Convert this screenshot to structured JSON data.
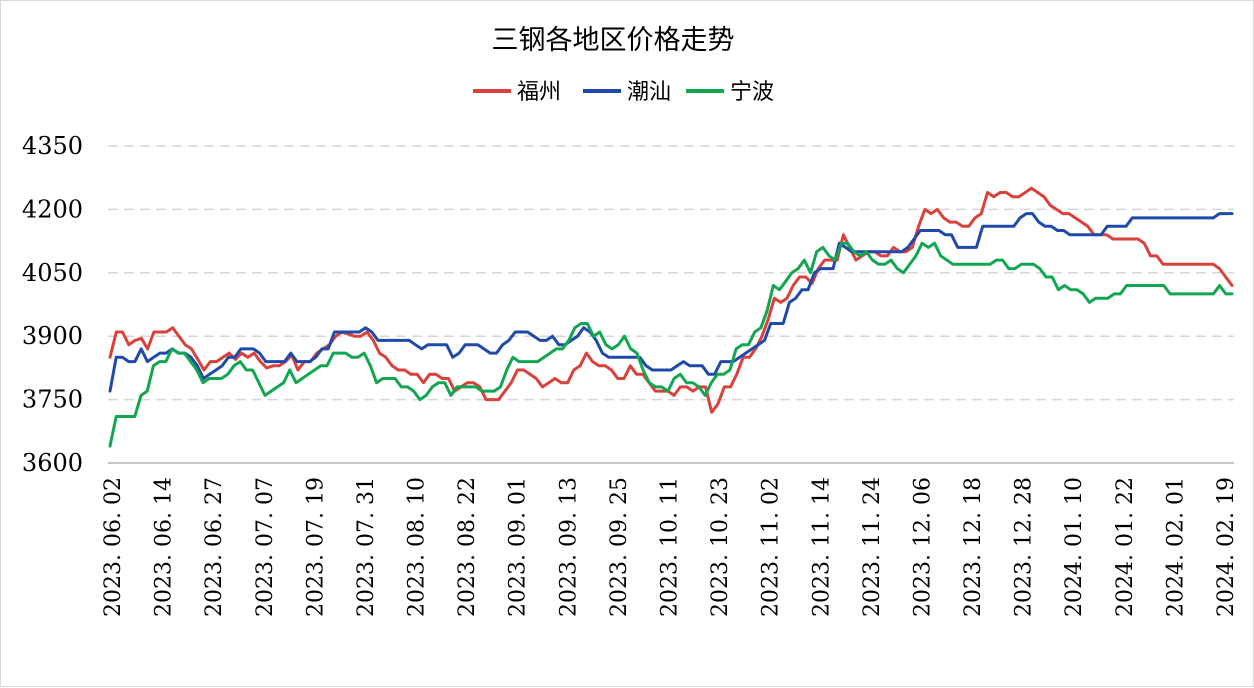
{
  "chart_data": {
    "type": "line",
    "title": "三钢各地区价格走势",
    "xlabel": "",
    "ylabel": "",
    "ylim": [
      3600,
      4350
    ],
    "yticks": [
      3600,
      3750,
      3900,
      4050,
      4200,
      4350
    ],
    "grid": true,
    "legend": "top-center",
    "xtick_labels": [
      "2023. 06. 02",
      "2023. 06. 14",
      "2023. 06. 27",
      "2023. 07. 07",
      "2023. 07. 19",
      "2023. 07. 31",
      "2023. 08. 10",
      "2023. 08. 22",
      "2023. 09. 01",
      "2023. 09. 13",
      "2023. 09. 25",
      "2023. 10. 11",
      "2023. 10. 23",
      "2023. 11. 02",
      "2023. 11. 14",
      "2023. 11. 24",
      "2023. 12. 06",
      "2023. 12. 18",
      "2023. 12. 28",
      "2024. 01. 10",
      "2024. 01. 22",
      "2024. 02. 01",
      "2024. 02. 19"
    ],
    "series": [
      {
        "name": "福州",
        "color": "#d9413a",
        "values": [
          3850,
          3910,
          3910,
          3880,
          3890,
          3895,
          3870,
          3910,
          3910,
          3910,
          3920,
          3900,
          3880,
          3870,
          3845,
          3820,
          3840,
          3840,
          3850,
          3860,
          3845,
          3860,
          3850,
          3860,
          3840,
          3825,
          3830,
          3830,
          3840,
          3855,
          3820,
          3840,
          3840,
          3860,
          3870,
          3880,
          3900,
          3910,
          3905,
          3900,
          3900,
          3910,
          3890,
          3860,
          3850,
          3830,
          3820,
          3820,
          3810,
          3810,
          3790,
          3810,
          3810,
          3800,
          3800,
          3770,
          3780,
          3790,
          3790,
          3780,
          3750,
          3750,
          3750,
          3770,
          3790,
          3820,
          3820,
          3810,
          3800,
          3780,
          3790,
          3800,
          3790,
          3790,
          3820,
          3830,
          3860,
          3840,
          3830,
          3830,
          3820,
          3800,
          3800,
          3830,
          3810,
          3810,
          3790,
          3770,
          3770,
          3770,
          3760,
          3780,
          3780,
          3770,
          3780,
          3780,
          3720,
          3740,
          3780,
          3780,
          3810,
          3850,
          3850,
          3870,
          3900,
          3940,
          3990,
          3980,
          3990,
          4020,
          4040,
          4040,
          4025,
          4060,
          4080,
          4080,
          4080,
          4140,
          4110,
          4080,
          4090,
          4100,
          4100,
          4090,
          4090,
          4110,
          4100,
          4100,
          4110,
          4160,
          4200,
          4190,
          4200,
          4180,
          4170,
          4170,
          4160,
          4160,
          4180,
          4190,
          4240,
          4230,
          4240,
          4240,
          4230,
          4230,
          4240,
          4250,
          4240,
          4230,
          4210,
          4200,
          4190,
          4190,
          4180,
          4170,
          4160,
          4140,
          4140,
          4140,
          4130,
          4130,
          4130,
          4130,
          4130,
          4120,
          4090,
          4090,
          4070,
          4070,
          4070,
          4070,
          4070,
          4070,
          4070,
          4070,
          4070,
          4060,
          4040,
          4020
        ]
      },
      {
        "name": "潮汕",
        "color": "#1f4aaa",
        "values": [
          3770,
          3850,
          3850,
          3840,
          3840,
          3870,
          3840,
          3850,
          3860,
          3860,
          3870,
          3860,
          3860,
          3850,
          3830,
          3800,
          3810,
          3820,
          3830,
          3850,
          3850,
          3870,
          3870,
          3870,
          3860,
          3840,
          3840,
          3840,
          3840,
          3860,
          3840,
          3840,
          3840,
          3850,
          3870,
          3870,
          3910,
          3910,
          3910,
          3910,
          3910,
          3920,
          3910,
          3890,
          3890,
          3890,
          3890,
          3890,
          3890,
          3880,
          3870,
          3880,
          3880,
          3880,
          3880,
          3850,
          3860,
          3880,
          3880,
          3880,
          3870,
          3860,
          3860,
          3880,
          3890,
          3910,
          3910,
          3910,
          3900,
          3890,
          3890,
          3900,
          3880,
          3880,
          3890,
          3900,
          3920,
          3910,
          3890,
          3860,
          3850,
          3850,
          3850,
          3850,
          3850,
          3850,
          3830,
          3820,
          3820,
          3820,
          3820,
          3830,
          3840,
          3830,
          3830,
          3830,
          3810,
          3810,
          3840,
          3840,
          3840,
          3850,
          3860,
          3870,
          3880,
          3890,
          3930,
          3930,
          3930,
          3980,
          3990,
          4010,
          4010,
          4050,
          4060,
          4060,
          4060,
          4120,
          4110,
          4100,
          4100,
          4100,
          4100,
          4100,
          4100,
          4100,
          4100,
          4100,
          4110,
          4130,
          4150,
          4150,
          4150,
          4150,
          4140,
          4140,
          4110,
          4110,
          4110,
          4110,
          4160,
          4160,
          4160,
          4160,
          4160,
          4160,
          4180,
          4190,
          4190,
          4170,
          4160,
          4160,
          4150,
          4150,
          4140,
          4140,
          4140,
          4140,
          4140,
          4140,
          4160,
          4160,
          4160,
          4160,
          4180,
          4180,
          4180,
          4180,
          4180,
          4180,
          4180,
          4180,
          4180,
          4180,
          4180,
          4180,
          4180,
          4180,
          4190,
          4190,
          4190
        ]
      },
      {
        "name": "宁波",
        "color": "#13a651",
        "values": [
          3640,
          3710,
          3710,
          3710,
          3710,
          3760,
          3770,
          3830,
          3840,
          3840,
          3870,
          3860,
          3860,
          3840,
          3820,
          3790,
          3800,
          3800,
          3800,
          3810,
          3830,
          3840,
          3820,
          3820,
          3790,
          3760,
          3770,
          3780,
          3790,
          3820,
          3790,
          3800,
          3810,
          3820,
          3830,
          3830,
          3860,
          3860,
          3860,
          3850,
          3850,
          3860,
          3830,
          3790,
          3800,
          3800,
          3800,
          3780,
          3780,
          3770,
          3750,
          3760,
          3780,
          3790,
          3790,
          3760,
          3780,
          3780,
          3780,
          3780,
          3770,
          3770,
          3770,
          3780,
          3820,
          3850,
          3840,
          3840,
          3840,
          3840,
          3850,
          3860,
          3870,
          3870,
          3890,
          3920,
          3930,
          3930,
          3900,
          3910,
          3880,
          3870,
          3880,
          3900,
          3870,
          3860,
          3820,
          3790,
          3780,
          3780,
          3770,
          3800,
          3810,
          3790,
          3790,
          3780,
          3760,
          3790,
          3810,
          3810,
          3820,
          3870,
          3880,
          3880,
          3910,
          3920,
          3960,
          4020,
          4010,
          4030,
          4050,
          4060,
          4080,
          4050,
          4100,
          4110,
          4090,
          4080,
          4120,
          4120,
          4100,
          4090,
          4100,
          4080,
          4070,
          4070,
          4080,
          4060,
          4050,
          4070,
          4090,
          4120,
          4110,
          4120,
          4090,
          4080,
          4070,
          4070,
          4070,
          4070,
          4070,
          4070,
          4070,
          4080,
          4080,
          4060,
          4060,
          4070,
          4070,
          4070,
          4060,
          4040,
          4040,
          4010,
          4020,
          4010,
          4010,
          4000,
          3980,
          3990,
          3990,
          3990,
          4000,
          4000,
          4020,
          4020,
          4020,
          4020,
          4020,
          4020,
          4020,
          4000,
          4000,
          4000,
          4000,
          4000,
          4000,
          4000,
          4000,
          4020,
          4000,
          4000
        ]
      }
    ]
  }
}
